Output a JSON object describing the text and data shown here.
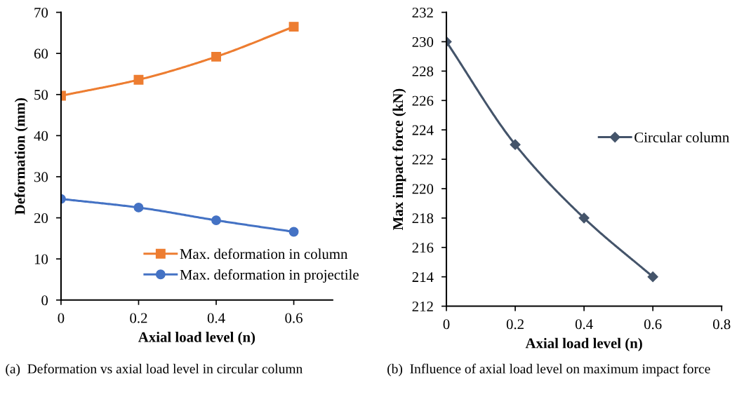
{
  "chart_data": [
    {
      "type": "line",
      "xlabel": "Axial load level (n)",
      "ylabel": "Deformation (mm)",
      "x": [
        0,
        0.2,
        0.4,
        0.6
      ],
      "xlim": [
        0,
        0.7
      ],
      "xticks": [
        0,
        0.2,
        0.4,
        0.6
      ],
      "ylim": [
        0,
        70
      ],
      "yticks": [
        0,
        10,
        20,
        30,
        40,
        50,
        60,
        70
      ],
      "grid": false,
      "legend": "bottom right",
      "series": [
        {
          "name": "Max. deformation in column",
          "color": "#ed7d31",
          "marker": "square",
          "values": [
            49.7,
            53.6,
            59.2,
            66.5
          ]
        },
        {
          "name": "Max. deformation in projectile",
          "color": "#4472c4",
          "marker": "circle",
          "values": [
            24.6,
            22.5,
            19.4,
            16.6
          ]
        }
      ],
      "annotations": [
        "(a)  Deformation vs axial load level in circular column"
      ]
    },
    {
      "type": "line",
      "xlabel": "Axial load level (n)",
      "ylabel": "Max impact force (kN)",
      "x": [
        0,
        0.2,
        0.4,
        0.6
      ],
      "xlim": [
        0,
        0.8
      ],
      "xticks": [
        0,
        0.2,
        0.4,
        0.6,
        0.8
      ],
      "ylim": [
        212,
        232
      ],
      "yticks": [
        212,
        214,
        216,
        218,
        220,
        222,
        224,
        226,
        228,
        230,
        232
      ],
      "grid": false,
      "legend": "right",
      "series": [
        {
          "name": "Circular column",
          "color": "#44546a",
          "marker": "diamond",
          "values": [
            230,
            223,
            218,
            214
          ]
        }
      ],
      "annotations": [
        "(b)  Influence of axial load level on maximum impact force"
      ]
    }
  ]
}
